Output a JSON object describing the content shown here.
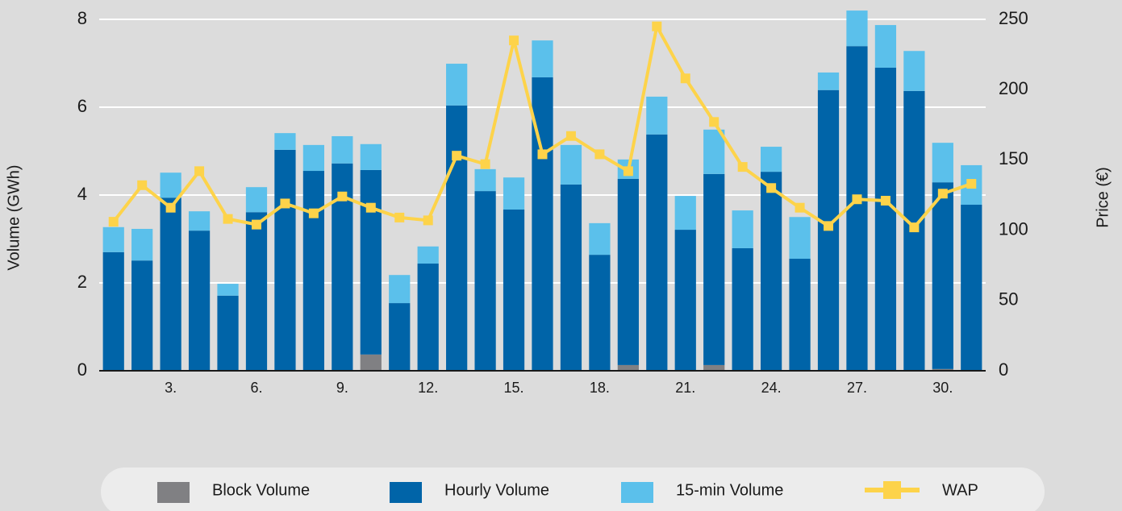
{
  "chart_data": {
    "type": "bar",
    "stacked": true,
    "y_label": "Volume (GWh)",
    "y2_label": "Price (€)",
    "categories": [
      null,
      null,
      "3.",
      null,
      null,
      "6.",
      null,
      null,
      "9.",
      null,
      null,
      "12.",
      null,
      null,
      "15.",
      null,
      null,
      "18.",
      null,
      null,
      "21.",
      null,
      null,
      "24.",
      null,
      null,
      "27.",
      null,
      null,
      "30.",
      null
    ],
    "ylim": [
      0,
      8
    ],
    "yticks": [
      0,
      2,
      4,
      6,
      8
    ],
    "y2lim": [
      0,
      250
    ],
    "y2ticks": [
      0,
      50,
      100,
      150,
      200,
      250
    ],
    "grid": true,
    "legend": "bottom",
    "series": [
      {
        "name": "Block Volume",
        "color": "#808083",
        "type": "bar",
        "values": [
          0,
          0,
          0,
          0,
          0,
          0,
          0,
          0,
          0,
          0.37,
          0,
          0,
          0,
          0,
          0,
          0,
          0,
          0,
          0.13,
          0,
          0,
          0.13,
          0,
          0,
          0,
          0,
          0,
          0,
          0,
          0.04,
          0
        ]
      },
      {
        "name": "Hourly Volume",
        "color": "#0064a8",
        "type": "bar",
        "values": [
          2.7,
          2.51,
          3.94,
          3.19,
          1.71,
          3.61,
          5.03,
          4.55,
          4.72,
          4.2,
          1.54,
          2.44,
          6.04,
          4.09,
          3.67,
          6.68,
          4.24,
          2.64,
          4.24,
          5.38,
          3.21,
          4.35,
          2.79,
          4.53,
          2.55,
          6.39,
          7.39,
          6.9,
          6.37,
          4.25,
          3.78
        ]
      },
      {
        "name": "15-min Volume",
        "color": "#5bc0eb",
        "type": "bar",
        "values": [
          0.57,
          0.72,
          0.57,
          0.44,
          0.27,
          0.57,
          0.38,
          0.59,
          0.62,
          0.59,
          0.64,
          0.39,
          0.95,
          0.5,
          0.73,
          0.84,
          0.9,
          0.72,
          0.44,
          0.86,
          0.77,
          1.01,
          0.86,
          0.57,
          0.95,
          0.4,
          0.81,
          0.97,
          0.91,
          0.9,
          0.9
        ]
      },
      {
        "name": "WAP",
        "color": "#fdd34a",
        "type": "line",
        "axis": "y2",
        "values": [
          106,
          132,
          116,
          142,
          108,
          104,
          119,
          112,
          124,
          116,
          109,
          107,
          153,
          147,
          235,
          154,
          167,
          154,
          142,
          245,
          208,
          177,
          145,
          130,
          116,
          103,
          122,
          121,
          102,
          126,
          133
        ]
      }
    ]
  }
}
